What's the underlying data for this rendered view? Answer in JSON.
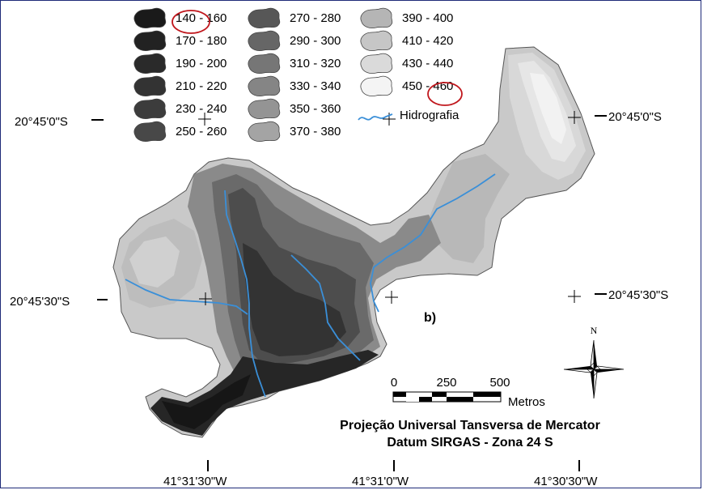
{
  "legend": {
    "classes": [
      {
        "label": "140 - 160",
        "color": "#1a1a1a"
      },
      {
        "label": "170 - 180",
        "color": "#222222"
      },
      {
        "label": "190 - 200",
        "color": "#2a2a2a"
      },
      {
        "label": "210 - 220",
        "color": "#333333"
      },
      {
        "label": "230 - 240",
        "color": "#3c3c3c"
      },
      {
        "label": "250 - 260",
        "color": "#484848"
      },
      {
        "label": "270 - 280",
        "color": "#575757"
      },
      {
        "label": "290 - 300",
        "color": "#666666"
      },
      {
        "label": "310 - 320",
        "color": "#767676"
      },
      {
        "label": "330 - 340",
        "color": "#858585"
      },
      {
        "label": "350 - 360",
        "color": "#949494"
      },
      {
        "label": "370 - 380",
        "color": "#a4a4a4"
      },
      {
        "label": "390 - 400",
        "color": "#b5b5b5"
      },
      {
        "label": "410 - 420",
        "color": "#c6c6c6"
      },
      {
        "label": "430 - 440",
        "color": "#dadada"
      },
      {
        "label": "450 - 460",
        "color": "#f4f4f4"
      }
    ],
    "hydrography_label": "Hidrografia",
    "hydrography_color": "#3a8fd8",
    "highlight_color": "#c0161c"
  },
  "coordinates": {
    "lat_top_left": "20°45'0\"S",
    "lat_top_right": "20°45'0\"S",
    "lat_mid_left": "20°45'30\"S",
    "lat_mid_right": "20°45'30\"S",
    "lon_1": "41°31'30\"W",
    "lon_2": "41°31'0\"W",
    "lon_3": "41°30'30\"W"
  },
  "panel_label": "b)",
  "north_arrow_label": "N",
  "scale_bar": {
    "ticks": [
      "0",
      "250",
      "500"
    ],
    "unit": "Metros"
  },
  "projection": {
    "line1": "Projeção Universal Tansversa de Mercator",
    "line2": "Datum SIRGAS - Zona 24 S"
  }
}
